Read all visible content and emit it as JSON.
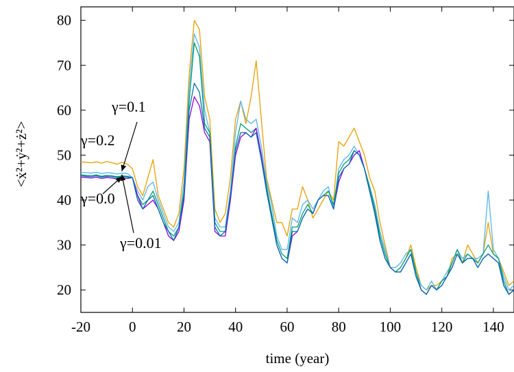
{
  "chart_data": {
    "type": "line",
    "title": "",
    "xlabel": "time (year)",
    "ylabel": "<ẋ²+ẏ²+ż²>",
    "xlim": [
      -20,
      148
    ],
    "ylim": [
      15,
      83
    ],
    "xticks": [
      -20,
      0,
      20,
      40,
      60,
      80,
      100,
      120,
      140
    ],
    "yticks": [
      20,
      30,
      40,
      50,
      60,
      70,
      80
    ],
    "grid": false,
    "legend": "none",
    "x": [
      -20,
      -18,
      -16,
      -14,
      -12,
      -10,
      -8,
      -6,
      -4,
      -2,
      0,
      2,
      4,
      6,
      8,
      10,
      12,
      14,
      16,
      18,
      20,
      22,
      24,
      26,
      28,
      30,
      32,
      34,
      36,
      38,
      40,
      42,
      44,
      46,
      48,
      50,
      52,
      54,
      56,
      58,
      60,
      62,
      64,
      66,
      68,
      70,
      72,
      74,
      76,
      78,
      80,
      82,
      84,
      86,
      88,
      90,
      92,
      94,
      96,
      98,
      100,
      102,
      104,
      106,
      108,
      110,
      112,
      114,
      116,
      118,
      120,
      122,
      124,
      126,
      128,
      130,
      132,
      134,
      136,
      138,
      140,
      142,
      144,
      146,
      148
    ],
    "series": [
      {
        "name": "γ=0.2",
        "color": "#e69f00",
        "values": [
          48.5,
          48.4,
          48.3,
          48.5,
          48.2,
          48.6,
          48.3,
          48.0,
          48.4,
          48.0,
          47,
          43,
          41,
          45,
          49,
          41,
          38,
          35,
          34,
          37,
          47,
          68,
          80,
          78,
          63,
          58,
          38,
          35,
          37,
          45,
          58,
          62,
          57,
          63,
          71,
          58,
          45,
          40,
          35,
          35,
          32,
          38,
          38,
          43,
          40,
          36,
          38,
          40,
          42,
          40,
          53,
          52,
          54,
          56,
          53,
          50,
          45,
          42,
          35,
          30,
          25,
          24,
          25,
          27,
          30,
          25,
          21,
          20,
          21,
          21,
          22,
          23,
          27,
          28,
          26,
          30,
          28,
          26,
          28,
          35,
          28,
          27,
          24,
          21,
          22
        ]
      },
      {
        "name": "γ=0.1",
        "color": "#56b4e9",
        "values": [
          46.2,
          46.1,
          46.0,
          46.2,
          45.9,
          46.1,
          46.0,
          45.8,
          46.0,
          45.9,
          45,
          42,
          40,
          43,
          44,
          40,
          37,
          34,
          33,
          35,
          44,
          65,
          77,
          74,
          60,
          55,
          36,
          34,
          34,
          42,
          55,
          62,
          58,
          57,
          58,
          52,
          44,
          39,
          32,
          29,
          29,
          36,
          35,
          39,
          40,
          38,
          40,
          42,
          43,
          38,
          47,
          49,
          50,
          52,
          50,
          47,
          43,
          39,
          33,
          29,
          25,
          25,
          26,
          28,
          29,
          24,
          21,
          20,
          22,
          20,
          22,
          24,
          26,
          29,
          27,
          28,
          27,
          27,
          28,
          42,
          29,
          27,
          23,
          20,
          21
        ]
      },
      {
        "name": "γ=0.01",
        "color": "#009e73",
        "values": [
          45.6,
          45.5,
          45.4,
          45.6,
          45.3,
          45.5,
          45.4,
          45.2,
          45.4,
          45.3,
          45,
          41,
          39,
          40,
          42,
          39,
          36,
          33,
          32,
          34,
          42,
          62,
          75,
          72,
          57,
          55,
          35,
          33,
          33,
          40,
          52,
          57,
          56,
          55,
          56,
          50,
          43,
          37,
          31,
          28,
          27,
          34,
          34,
          37,
          39,
          37,
          40,
          41,
          42,
          39,
          46,
          48,
          49,
          51,
          50,
          47,
          43,
          38,
          32,
          28,
          25,
          24,
          25,
          27,
          29,
          24,
          20,
          19,
          21,
          20,
          22,
          23,
          26,
          29,
          26,
          28,
          27,
          26,
          28,
          30,
          28,
          27,
          22,
          19,
          20
        ]
      },
      {
        "name": "γ=0.0",
        "color": "#9400d3",
        "values": [
          45.1,
          45.0,
          44.9,
          45.1,
          44.8,
          45.0,
          44.9,
          44.7,
          44.9,
          44.8,
          45,
          41,
          38,
          39,
          40,
          38,
          35,
          32,
          31,
          33,
          40,
          58,
          63,
          61,
          55,
          53,
          33,
          32,
          32,
          40,
          50,
          54,
          55,
          54,
          56,
          50,
          42,
          36,
          30,
          27,
          26,
          32,
          33,
          36,
          38,
          37,
          40,
          41,
          41,
          38,
          44,
          47,
          48,
          50,
          51,
          47,
          42,
          37,
          31,
          27,
          25,
          24,
          24,
          26,
          28,
          23,
          20,
          19,
          21,
          20,
          21,
          23,
          25,
          28,
          26,
          27,
          27,
          25,
          27,
          28,
          27,
          26,
          21,
          19,
          20
        ]
      },
      {
        "name": "",
        "color": "#0072b2",
        "values": [
          45.4,
          45.3,
          45.2,
          45.4,
          45.1,
          45.3,
          45.2,
          45.0,
          45.2,
          45.1,
          45,
          40,
          38,
          40,
          41,
          38,
          35,
          33,
          31,
          34,
          41,
          60,
          66,
          64,
          56,
          54,
          34,
          32,
          33,
          41,
          51,
          55,
          55,
          54,
          55,
          49,
          42,
          36,
          30,
          27,
          26,
          33,
          33,
          36,
          38,
          37,
          40,
          41,
          41,
          38,
          45,
          47,
          48,
          51,
          50,
          47,
          42,
          37,
          31,
          27,
          25,
          24,
          24,
          26,
          28,
          23,
          20,
          19,
          21,
          20,
          21,
          23,
          25,
          28,
          26,
          27,
          27,
          25,
          27,
          28,
          27,
          26,
          21,
          19,
          20
        ]
      }
    ],
    "annotations": [
      {
        "text": "γ=0.1",
        "arrow_to": [
          -2,
          46.4
        ]
      },
      {
        "text": "γ=0.2",
        "arrow_to": null
      },
      {
        "text": "γ=0.0",
        "arrow_to": [
          -2,
          45.2
        ]
      },
      {
        "text": "γ=0.01",
        "arrow_to": [
          -2,
          45.7
        ]
      }
    ]
  }
}
